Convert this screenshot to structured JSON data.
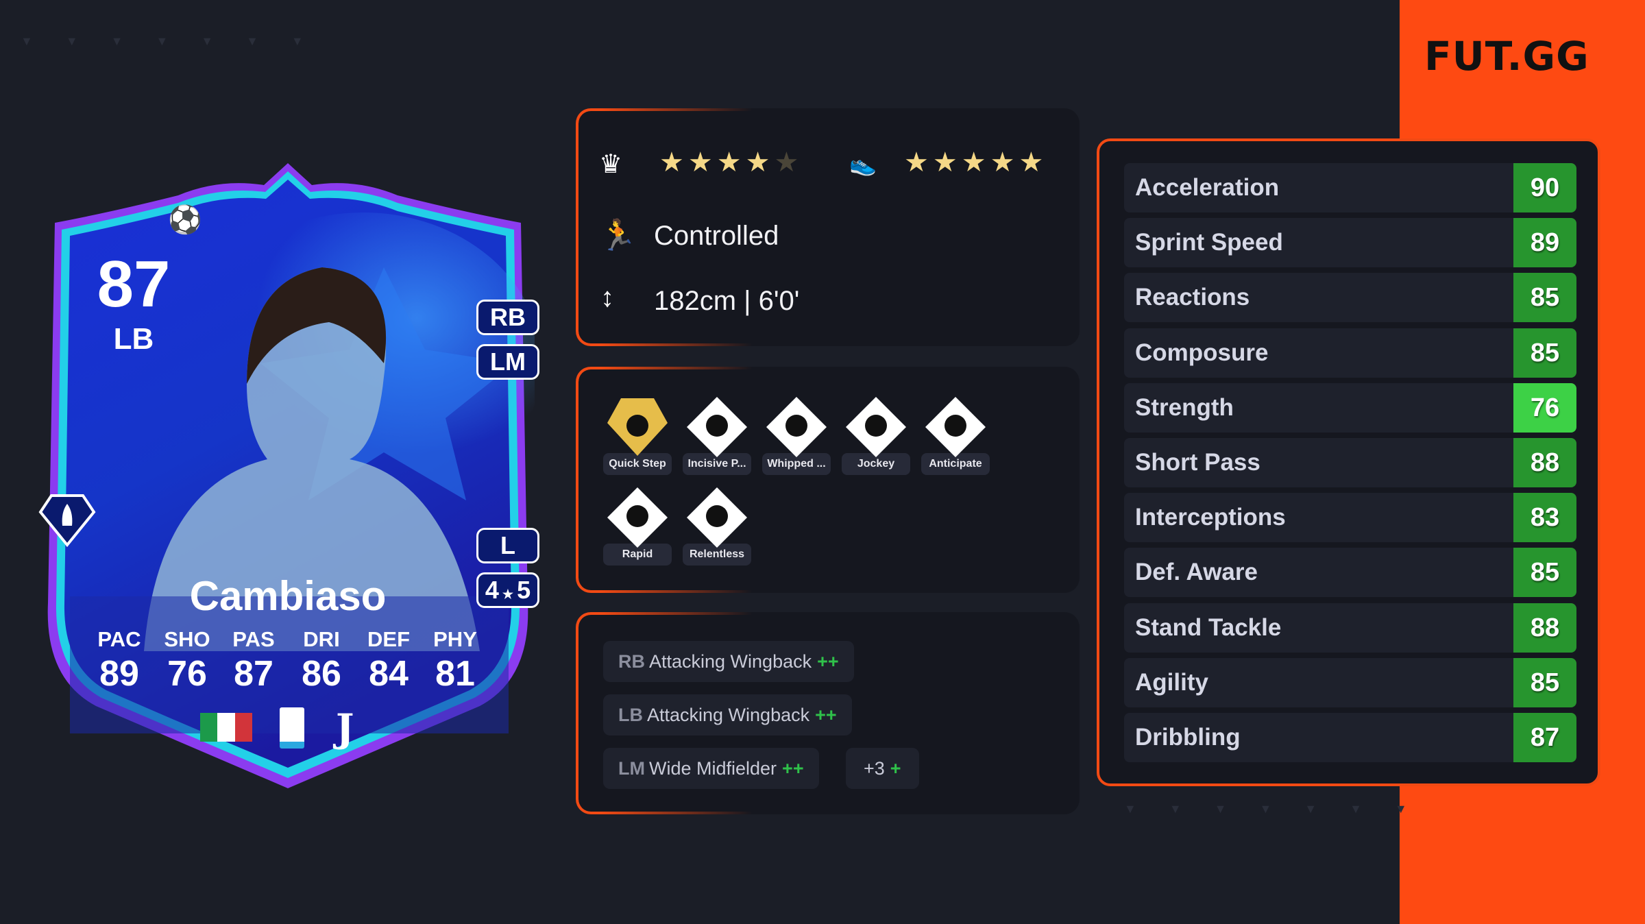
{
  "brand": {
    "logo": "FUT.GG",
    "accent": "#fe4a12"
  },
  "card": {
    "rating": "87",
    "position": "LB",
    "name": "Cambiaso",
    "alt_positions": [
      "RB",
      "LM"
    ],
    "foot": "L",
    "skill_moves": "4",
    "weak_foot": "5",
    "face_stats": [
      {
        "label": "PAC",
        "value": "89"
      },
      {
        "label": "SHO",
        "value": "76"
      },
      {
        "label": "PAS",
        "value": "87"
      },
      {
        "label": "DRI",
        "value": "86"
      },
      {
        "label": "DEF",
        "value": "84"
      },
      {
        "label": "PHY",
        "value": "81"
      }
    ],
    "icons": [
      "champions-league-ball-icon",
      "quick-step-playstyle-icon",
      "italy-flag-icon",
      "serie-a-icon",
      "juventus-icon"
    ]
  },
  "info": {
    "skill_moves_stars": 4,
    "weak_foot_stars": 5,
    "accelerate": "Controlled",
    "height": "182cm | 6'0'"
  },
  "playstyles": [
    {
      "label": "Quick Step",
      "plus": true,
      "icon": "rocket-icon"
    },
    {
      "label": "Incisive P...",
      "icon": "location-pin-icon"
    },
    {
      "label": "Whipped ...",
      "icon": "whipped-pass-icon"
    },
    {
      "label": "Jockey",
      "icon": "jockey-icon"
    },
    {
      "label": "Anticipate",
      "icon": "raccoon-icon"
    },
    {
      "label": "Rapid",
      "icon": "runner-ball-icon"
    },
    {
      "label": "Relentless",
      "icon": "battery-bolt-icon"
    }
  ],
  "roles": [
    {
      "pos": "RB",
      "role": "Attacking Wingback",
      "plus": "++"
    },
    {
      "pos": "LB",
      "role": "Attacking Wingback",
      "plus": "++"
    },
    {
      "pos": "LM",
      "role": "Wide Midfielder",
      "plus": "++"
    }
  ],
  "roles_more": {
    "count": "+3",
    "plus": "+"
  },
  "detail_stats": [
    {
      "name": "Acceleration",
      "value": "90",
      "color": "#27952e"
    },
    {
      "name": "Sprint Speed",
      "value": "89",
      "color": "#27952e"
    },
    {
      "name": "Reactions",
      "value": "85",
      "color": "#27952e"
    },
    {
      "name": "Composure",
      "value": "85",
      "color": "#27952e"
    },
    {
      "name": "Strength",
      "value": "76",
      "color": "#3dd146"
    },
    {
      "name": "Short Pass",
      "value": "88",
      "color": "#27952e"
    },
    {
      "name": "Interceptions",
      "value": "83",
      "color": "#27952e"
    },
    {
      "name": "Def. Aware",
      "value": "85",
      "color": "#27952e"
    },
    {
      "name": "Stand Tackle",
      "value": "88",
      "color": "#27952e"
    },
    {
      "name": "Agility",
      "value": "85",
      "color": "#27952e"
    },
    {
      "name": "Dribbling",
      "value": "87",
      "color": "#27952e"
    }
  ]
}
